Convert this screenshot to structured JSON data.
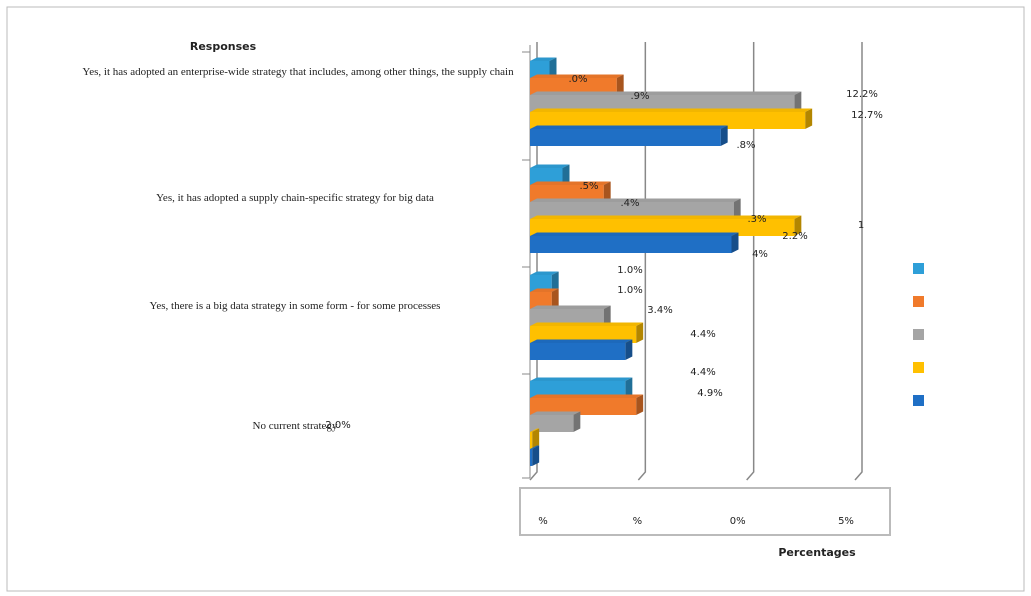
{
  "chart_data": {
    "type": "bar",
    "orientation": "horizontal",
    "y_axis_title": "Responses",
    "x_axis_title": "Percentages",
    "categories": [
      "Yes, it has adopted an enterprise-wide strategy that includes, among other things, the supply chain",
      "Yes, it has adopted a supply chain-specific strategy for big data",
      "Yes, there is a big data strategy in some form - for some processes",
      "No current strategy"
    ],
    "series": [
      {
        "color": "#2e9fd8",
        "values": [
          0.9,
          1.5,
          1.0,
          4.4
        ]
      },
      {
        "color": "#f07a2b",
        "values": [
          4.0,
          3.4,
          1.0,
          4.9
        ]
      },
      {
        "color": "#a5a5a5",
        "values": [
          12.2,
          9.4,
          3.4,
          2.0
        ]
      },
      {
        "color": "#ffc000",
        "values": [
          12.7,
          12.2,
          4.9,
          0.1
        ]
      },
      {
        "color": "#1f6fc5",
        "values": [
          8.8,
          9.3,
          4.4,
          0.1
        ]
      }
    ],
    "xlim": [
      0,
      15
    ],
    "xticks": [
      {
        "value": 0,
        "label": "%"
      },
      {
        "value": 5,
        "label": "%"
      },
      {
        "value": 10,
        "label": "0%"
      },
      {
        "value": 15,
        "label": "5%"
      }
    ],
    "grid": true,
    "legend": "right",
    "annotations": [
      ".0%",
      ".9%",
      "12.2%",
      "12.7%",
      ".8%",
      ".5%",
      ".4%",
      ".3%",
      "2.2%",
      "1",
      "4%",
      "1.0%",
      "1.0%",
      "3.4%",
      "4.4%",
      "4.4%",
      "4.9%",
      "2.0%"
    ]
  }
}
